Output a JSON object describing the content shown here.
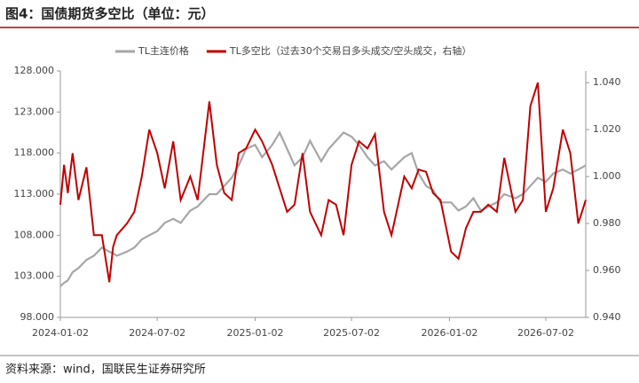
{
  "chart_data": {
    "type": "line",
    "title": "图4：国债期货多空比（单位：元）",
    "source": "资料来源：wind，国联民生证券研究所",
    "x": [
      "2024-01-02",
      "2024-01-09",
      "2024-01-16",
      "2024-01-25",
      "2024-02-05",
      "2024-02-20",
      "2024-03-05",
      "2024-03-20",
      "2024-04-03",
      "2024-04-10",
      "2024-04-17",
      "2024-05-06",
      "2024-05-20",
      "2024-06-03",
      "2024-06-17",
      "2024-07-02",
      "2024-07-16",
      "2024-08-01",
      "2024-08-15",
      "2024-09-02",
      "2024-09-16",
      "2024-10-08",
      "2024-10-22",
      "2024-11-05",
      "2024-11-19",
      "2024-12-02",
      "2024-12-16",
      "2025-01-02",
      "2025-01-15",
      "2025-02-03",
      "2025-02-17",
      "2025-03-03",
      "2025-03-17",
      "2025-04-01",
      "2025-04-15",
      "2025-05-06",
      "2025-05-20",
      "2025-06-03",
      "2025-06-17",
      "2025-07-02",
      "2025-07-16",
      "2025-08-01",
      "2025-08-15",
      "2025-09-01",
      "2025-09-15",
      "2025-10-09",
      "2025-10-23",
      "2025-11-05",
      "2025-11-19",
      "2025-12-02",
      "2025-12-16",
      "2026-01-05",
      "2026-01-19",
      "2026-02-02",
      "2026-02-16",
      "2026-03-02",
      "2026-03-16",
      "2026-04-01",
      "2026-04-15",
      "2026-05-06",
      "2026-05-20",
      "2026-06-03",
      "2026-06-17",
      "2026-07-02",
      "2026-07-16",
      "2026-08-03",
      "2026-08-17",
      "2026-09-01",
      "2026-09-15"
    ],
    "series": [
      {
        "name": "TL主连价格",
        "color": "#a6a6a6",
        "axis": "y",
        "values": [
          101.8,
          102.2,
          102.5,
          103.5,
          104,
          105,
          105.5,
          106.5,
          106,
          105.8,
          105.5,
          106,
          106.5,
          107.5,
          108,
          108.5,
          109.5,
          110,
          109.5,
          111,
          111.5,
          113,
          113,
          114,
          115,
          116.5,
          118.5,
          119,
          117.5,
          119,
          120.5,
          118.5,
          116.5,
          117.5,
          119.5,
          117,
          118.5,
          119.5,
          120.5,
          120,
          119,
          117.5,
          116.5,
          117,
          116,
          117.5,
          118,
          115.5,
          114,
          113.5,
          112,
          112,
          111,
          111.5,
          112.5,
          111,
          111.5,
          112,
          113,
          112.5,
          113,
          114,
          115,
          114.5,
          115.5,
          116,
          115.5,
          116,
          116.5
        ]
      },
      {
        "name": "TL多空比（过去30个交易日多头成交/空头成交，右轴）",
        "color": "#c00000",
        "axis": "y2",
        "values": [
          0.988,
          1.005,
          0.993,
          1.01,
          0.99,
          1.004,
          0.975,
          0.975,
          0.955,
          0.97,
          0.975,
          0.98,
          0.985,
          1.0,
          1.02,
          1.01,
          0.995,
          1.015,
          0.99,
          1.0,
          0.99,
          1.032,
          1.005,
          0.993,
          0.99,
          1.01,
          1.012,
          1.02,
          1.015,
          1.005,
          0.995,
          0.985,
          0.988,
          1.01,
          0.985,
          0.975,
          0.99,
          0.988,
          0.975,
          1.005,
          1.015,
          1.012,
          1.018,
          0.985,
          0.975,
          1.0,
          0.995,
          1.003,
          1.002,
          0.993,
          0.99,
          0.968,
          0.965,
          0.978,
          0.985,
          0.985,
          0.988,
          0.985,
          1.008,
          0.985,
          0.99,
          1.03,
          1.04,
          0.985,
          0.995,
          1.02,
          1.01,
          0.98,
          0.99
        ]
      }
    ],
    "xticks": [
      "2024-01-02",
      "2024-07-02",
      "2025-01-02",
      "2025-07-02",
      "2026-01-02",
      "2026-07-02"
    ],
    "ylim": [
      98,
      128
    ],
    "yticks": [
      {
        "value": 98,
        "label": "98.000"
      },
      {
        "value": 103,
        "label": "103.000"
      },
      {
        "value": 108,
        "label": "108.000"
      },
      {
        "value": 113,
        "label": "113.000"
      },
      {
        "value": 118,
        "label": "118.000"
      },
      {
        "value": 123,
        "label": "123.000"
      },
      {
        "value": 128,
        "label": "128.000"
      }
    ],
    "y2lim": [
      0.94,
      1.045
    ],
    "y2ticks": [
      {
        "value": 0.94,
        "label": "0.940"
      },
      {
        "value": 0.96,
        "label": "0.960"
      },
      {
        "value": 0.98,
        "label": "0.980"
      },
      {
        "value": 1.0,
        "label": "1.000"
      },
      {
        "value": 1.02,
        "label": "1.020"
      },
      {
        "value": 1.04,
        "label": "1.040"
      }
    ],
    "legend": "top"
  }
}
